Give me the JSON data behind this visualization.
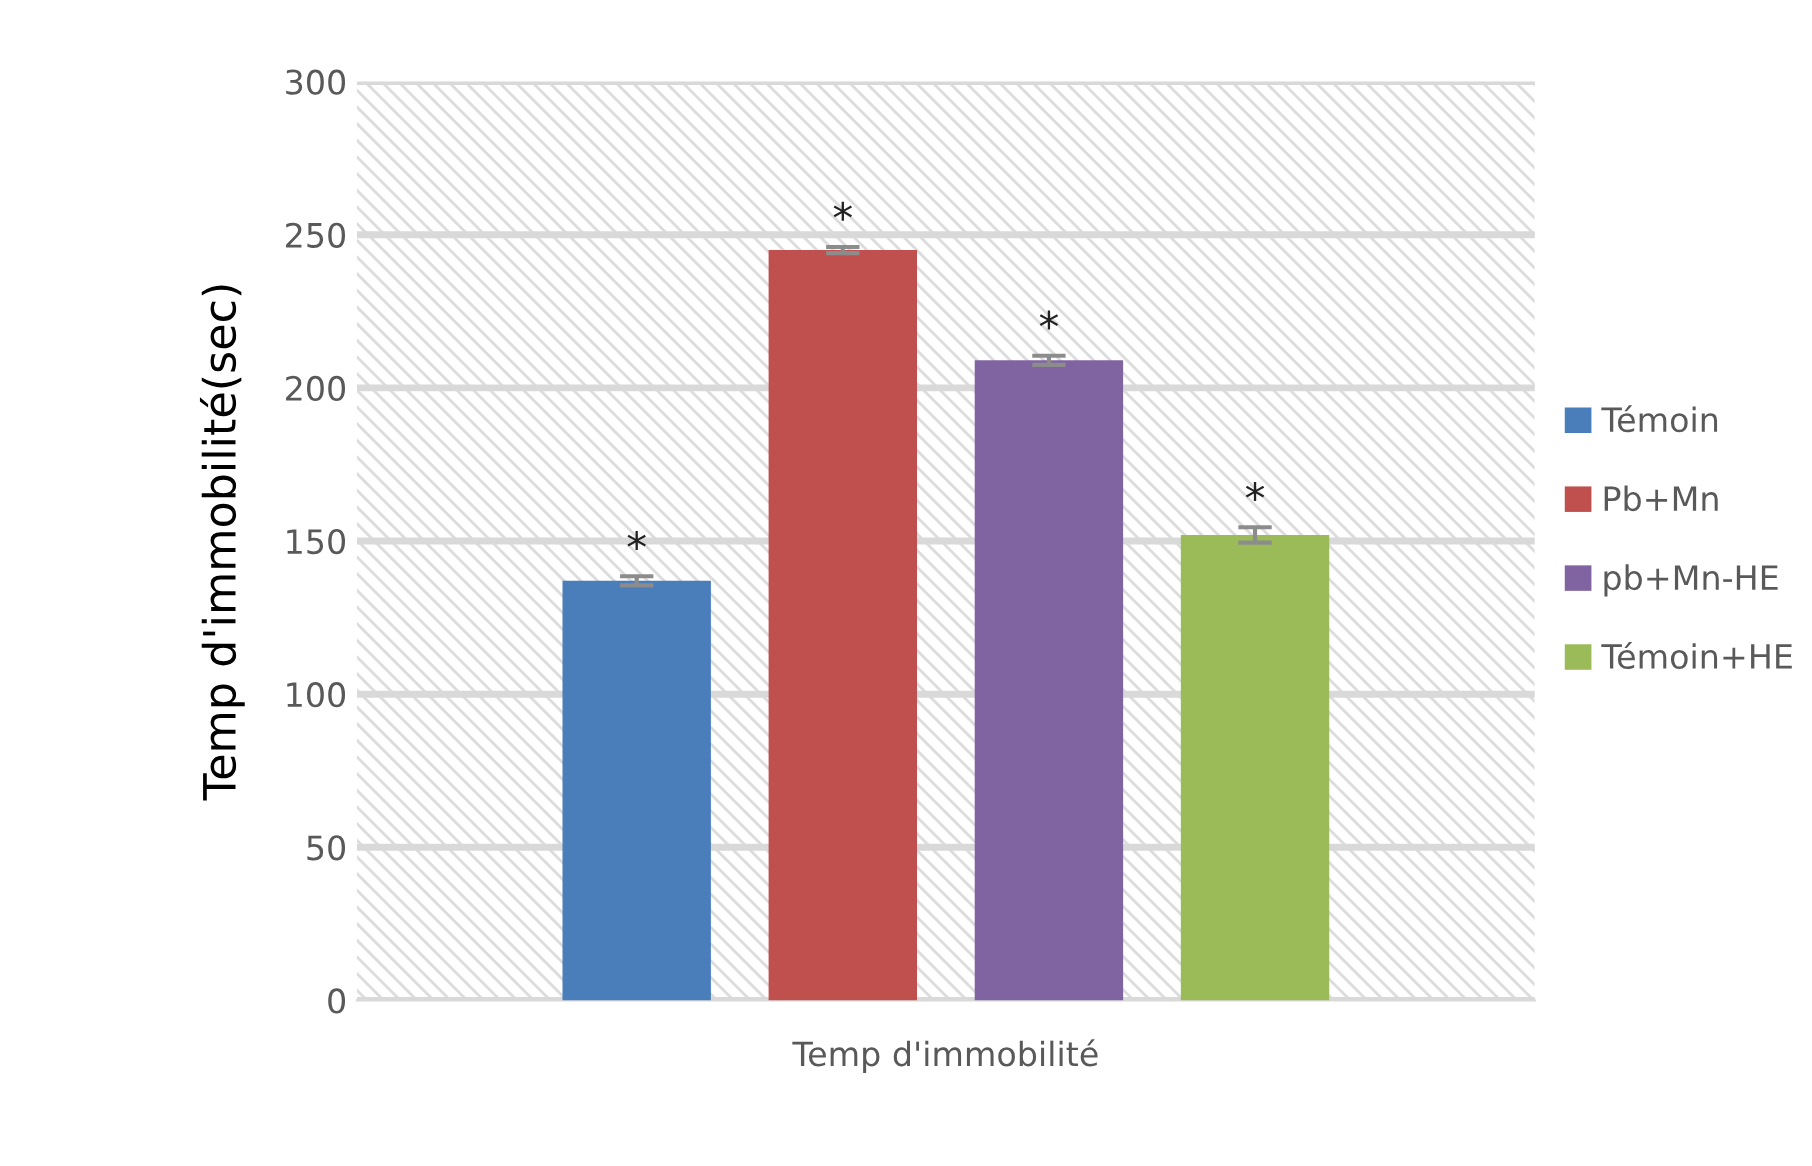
{
  "chart_data": {
    "type": "bar",
    "ylabel": "Temp d'immobilité(sec)",
    "categories": [
      "Temp d'immobilité"
    ],
    "series": [
      {
        "name": "Témoin",
        "color": "#4a7ebb",
        "values": [
          137
        ],
        "errors": [
          1.5
        ]
      },
      {
        "name": "Pb+Mn",
        "color": "#c0504d",
        "values": [
          245
        ],
        "errors": [
          1
        ]
      },
      {
        "name": "pb+Mn-HE",
        "color": "#8064a2",
        "values": [
          209
        ],
        "errors": [
          1.5
        ]
      },
      {
        "name": "Témoin+HE",
        "color": "#9bbb59",
        "values": [
          152
        ],
        "errors": [
          2.5
        ]
      }
    ],
    "annotations": [
      "*",
      "*",
      "*",
      "*"
    ],
    "ylim": [
      0,
      300
    ],
    "yticks": [
      0,
      50,
      100,
      150,
      200,
      250,
      300
    ],
    "grid": "y",
    "legend": "right"
  }
}
